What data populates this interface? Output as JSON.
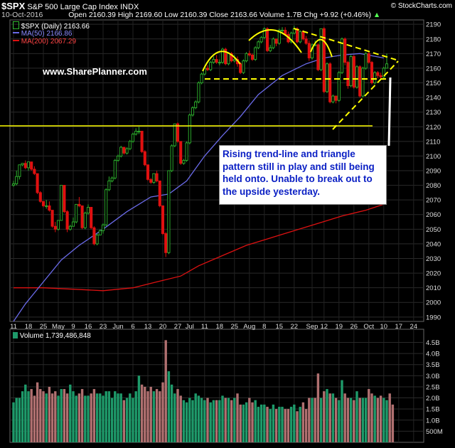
{
  "header": {
    "symbol": "$SPX",
    "name": "S&P 500 Large Cap Index",
    "exchange": "INDX",
    "date": "10-Oct-2016",
    "open_label": "Open",
    "open": "2160.39",
    "high_label": "High",
    "high": "2169.60",
    "low_label": "Low",
    "low": "2160.39",
    "close_label": "Close",
    "close": "2163.66",
    "volume_label": "Volume",
    "volume": "1.7B",
    "chg_label": "Chg",
    "chg": "+9.92 (+0.46%)",
    "chg_arrow": "▲",
    "brand": "© StockCharts.com"
  },
  "watermark": "www.SharePlanner.com",
  "annotation": "Rising trend-line and triangle pattern still in play and still being held onto. Unable to break out to the upside yesterday.",
  "legend": {
    "price": "$SPX (Daily) 2163.66",
    "ma50": "MA(50) 2166.86",
    "ma200": "MA(200) 2067.29",
    "volume": "Volume 1,739,486,848"
  },
  "colors": {
    "background": "#000000",
    "up_candle": "#2fb52f",
    "down_candle": "#e01010",
    "ma50": "#6a6ae8",
    "ma200": "#dd1111",
    "pattern_lines": "#ffff00",
    "vol_up": "#1e9a6a",
    "vol_down": "#b07070"
  },
  "chart_data": [
    {
      "type": "candlestick",
      "title": "$SPX S&P 500 Large Cap Index INDX",
      "ylim": [
        1987,
        2193
      ],
      "y_ticks": [
        1990,
        2000,
        2010,
        2020,
        2030,
        2040,
        2050,
        2060,
        2070,
        2080,
        2090,
        2100,
        2110,
        2120,
        2130,
        2140,
        2150,
        2160,
        2170,
        2180,
        2190
      ],
      "x_tick_labels": [
        "11",
        "18",
        "25",
        "May",
        "9",
        "16",
        "23",
        "Jun",
        "6",
        "13",
        "20",
        "27",
        "Jul",
        "11",
        "18",
        "25",
        "Aug",
        "8",
        "15",
        "22",
        "Sep",
        "12",
        "19",
        "26",
        "Oct",
        "10",
        "17",
        "24"
      ],
      "x_tick_index": [
        0,
        5,
        10,
        15,
        20,
        25,
        30,
        35,
        40,
        45,
        50,
        55,
        59,
        64,
        69,
        74,
        79,
        84,
        89,
        94,
        100,
        104,
        109,
        114,
        119,
        124,
        129,
        134
      ],
      "series": [
        {
          "name": "$SPX (Daily)",
          "close": [
            2081,
            2086,
            2094,
            2095,
            2092,
            2096,
            2091,
            2088,
            2075,
            2069,
            2066,
            2066,
            2063,
            2052,
            2050,
            2056,
            2080,
            2062,
            2050,
            2052,
            2055,
            2067,
            2066,
            2051,
            2061,
            2065,
            2051,
            2040,
            2046,
            2049,
            2053,
            2077,
            2083,
            2085,
            2097,
            2100,
            2106,
            2102,
            2105,
            2110,
            2115,
            2117,
            2117,
            2103,
            2094,
            2084,
            2082,
            2088,
            2083,
            2066,
            2047,
            2034,
            2090,
            2107,
            2122,
            2110,
            2095,
            2097,
            2109,
            2128,
            2133,
            2137,
            2150,
            2156,
            2160,
            2159,
            2164,
            2166,
            2164,
            2164,
            2173,
            2163,
            2170,
            2165,
            2166,
            2163,
            2157,
            2165,
            2170,
            2169,
            2166,
            2174,
            2178,
            2181,
            2187,
            2172,
            2174,
            2180,
            2177,
            2186,
            2186,
            2183,
            2178,
            2184,
            2187,
            2178,
            2185,
            2180,
            2177,
            2167,
            2176,
            2176,
            2159,
            2187,
            2144,
            2163,
            2137,
            2141,
            2138,
            2157,
            2180,
            2164,
            2148,
            2168,
            2147,
            2161,
            2141,
            2160,
            2170,
            2164,
            2150,
            2157,
            2155,
            2154,
            2160,
            2163
          ],
          "high": [
            2083,
            2090,
            2094,
            2095,
            2097,
            2096,
            2095,
            2093,
            2082,
            2076,
            2068,
            2070,
            2069,
            2060,
            2055,
            2056,
            2080,
            2080,
            2063,
            2053,
            2058,
            2067,
            2072,
            2064,
            2062,
            2067,
            2064,
            2052,
            2047,
            2050,
            2054,
            2078,
            2086,
            2086,
            2098,
            2101,
            2107,
            2106,
            2106,
            2111,
            2116,
            2119,
            2120,
            2117,
            2104,
            2094,
            2085,
            2088,
            2090,
            2083,
            2066,
            2048,
            2090,
            2108,
            2122,
            2123,
            2110,
            2098,
            2110,
            2129,
            2134,
            2138,
            2151,
            2157,
            2161,
            2162,
            2165,
            2168,
            2169,
            2166,
            2174,
            2174,
            2171,
            2171,
            2169,
            2168,
            2164,
            2166,
            2171,
            2172,
            2170,
            2175,
            2179,
            2182,
            2188,
            2188,
            2176,
            2181,
            2180,
            2187,
            2188,
            2188,
            2185,
            2185,
            2189,
            2188,
            2186,
            2186,
            2182,
            2179,
            2177,
            2179,
            2177,
            2187,
            2188,
            2164,
            2164,
            2142,
            2141,
            2158,
            2181,
            2181,
            2165,
            2169,
            2169,
            2162,
            2162,
            2161,
            2171,
            2171,
            2165,
            2158,
            2158,
            2157,
            2161,
            2170
          ],
          "low": [
            2079,
            2080,
            2084,
            2093,
            2091,
            2090,
            2090,
            2087,
            2074,
            2068,
            2065,
            2064,
            2062,
            2051,
            2048,
            2049,
            2056,
            2061,
            2048,
            2049,
            2052,
            2054,
            2065,
            2050,
            2050,
            2060,
            2050,
            2039,
            2039,
            2046,
            2047,
            2052,
            2076,
            2082,
            2084,
            2096,
            2099,
            2101,
            2101,
            2104,
            2109,
            2114,
            2115,
            2102,
            2093,
            2083,
            2081,
            2081,
            2082,
            2065,
            2046,
            2031,
            2033,
            2089,
            2106,
            2109,
            2094,
            2094,
            2096,
            2108,
            2127,
            2132,
            2136,
            2149,
            2155,
            2158,
            2158,
            2163,
            2163,
            2162,
            2163,
            2162,
            2162,
            2164,
            2164,
            2161,
            2156,
            2156,
            2164,
            2168,
            2165,
            2165,
            2173,
            2177,
            2180,
            2171,
            2171,
            2173,
            2175,
            2176,
            2184,
            2182,
            2177,
            2177,
            2183,
            2177,
            2177,
            2179,
            2176,
            2165,
            2166,
            2175,
            2158,
            2158,
            2143,
            2143,
            2136,
            2136,
            2136,
            2137,
            2156,
            2162,
            2146,
            2147,
            2146,
            2146,
            2140,
            2140,
            2159,
            2163,
            2149,
            2149,
            2153,
            2153,
            2153,
            2160
          ]
        },
        {
          "name": "MA(50)",
          "points": [
            [
              0,
              1987
            ],
            [
              4,
              1999
            ],
            [
              10,
              2014
            ],
            [
              16,
              2029
            ],
            [
              22,
              2039
            ],
            [
              30,
              2050
            ],
            [
              38,
              2062
            ],
            [
              46,
              2072
            ],
            [
              52,
              2074
            ],
            [
              58,
              2083
            ],
            [
              64,
              2100
            ],
            [
              70,
              2114
            ],
            [
              76,
              2127
            ],
            [
              82,
              2142
            ],
            [
              90,
              2155
            ],
            [
              98,
              2163
            ],
            [
              104,
              2167
            ],
            [
              110,
              2169
            ],
            [
              116,
              2170
            ],
            [
              124,
              2167
            ]
          ]
        },
        {
          "name": "MA(200)",
          "points": [
            [
              0,
              2010
            ],
            [
              10,
              2010
            ],
            [
              20,
              2009
            ],
            [
              30,
              2008
            ],
            [
              40,
              2010
            ],
            [
              48,
              2014
            ],
            [
              56,
              2018
            ],
            [
              62,
              2025
            ],
            [
              70,
              2032
            ],
            [
              78,
              2039
            ],
            [
              86,
              2044
            ],
            [
              94,
              2049
            ],
            [
              102,
              2054
            ],
            [
              110,
              2059
            ],
            [
              118,
              2063
            ],
            [
              124,
              2067
            ]
          ]
        }
      ]
    },
    {
      "type": "bar",
      "title": "Volume 1,739,486,848",
      "ylim": [
        0,
        4.9
      ],
      "y_ticks": [
        "500M",
        "1.0B",
        "1.5B",
        "2.0B",
        "2.5B",
        "3.0B",
        "3.5B",
        "4.0B",
        "4.5B"
      ],
      "y_tick_values": [
        0.5,
        1.0,
        1.5,
        2.0,
        2.5,
        3.0,
        3.5,
        4.0,
        4.5
      ],
      "series": [
        {
          "name": "Volume",
          "values": [
            1.8,
            2.0,
            2.0,
            2.3,
            2.6,
            2.3,
            2.4,
            2.1,
            2.7,
            2.4,
            2.3,
            2.2,
            2.5,
            2.2,
            2.3,
            2.1,
            2.4,
            2.4,
            2.2,
            2.6,
            2.3,
            2.1,
            2.2,
            2.4,
            2.1,
            2.1,
            2.2,
            2.4,
            2.2,
            2.2,
            2.1,
            2.3,
            2.3,
            2.0,
            2.3,
            2.2,
            2.2,
            1.9,
            2.0,
            2.2,
            2.0,
            2.3,
            3.0,
            2.6,
            2.5,
            2.3,
            2.5,
            2.3,
            2.4,
            2.3,
            2.7,
            4.6,
            3.2,
            2.6,
            2.2,
            2.4,
            2.1,
            1.9,
            1.8,
            2.0,
            1.9,
            2.2,
            2.1,
            2.0,
            1.9,
            2.0,
            1.8,
            1.9,
            1.9,
            1.9,
            2.1,
            2.0,
            2.0,
            1.9,
            2.0,
            2.2,
            1.7,
            1.7,
            1.8,
            2.0,
            1.8,
            1.9,
            1.6,
            1.7,
            1.7,
            1.6,
            1.5,
            1.7,
            1.5,
            1.6,
            1.6,
            1.5,
            1.5,
            1.6,
            1.7,
            1.4,
            1.6,
            1.8,
            1.5,
            2.0,
            2.0,
            2.0,
            3.1,
            2.0,
            2.3,
            2.4,
            2.2,
            2.2,
            2.0,
            1.9,
            2.8,
            2.2,
            2.0,
            2.0,
            1.9,
            2.3,
            2.0,
            2.0,
            2.0,
            2.4,
            2.2,
            2.1,
            2.0,
            2.1,
            2.0,
            1.9,
            2.2,
            1.7
          ]
        },
        {
          "name": "direction",
          "up": [
            1,
            1,
            1,
            1,
            1,
            1,
            0,
            0,
            0,
            0,
            0,
            1,
            0,
            0,
            0,
            1,
            1,
            0,
            0,
            1,
            1,
            1,
            0,
            0,
            1,
            1,
            0,
            0,
            1,
            1,
            1,
            1,
            1,
            1,
            1,
            1,
            1,
            0,
            1,
            1,
            1,
            1,
            1,
            0,
            0,
            0,
            0,
            1,
            0,
            0,
            0,
            0,
            1,
            1,
            1,
            0,
            0,
            1,
            1,
            1,
            1,
            1,
            1,
            1,
            1,
            0,
            1,
            1,
            0,
            1,
            1,
            0,
            1,
            0,
            1,
            0,
            0,
            1,
            1,
            0,
            0,
            1,
            1,
            1,
            1,
            0,
            1,
            1,
            0,
            1,
            1,
            0,
            0,
            1,
            1,
            0,
            1,
            0,
            0,
            0,
            1,
            0,
            0,
            1,
            0,
            1,
            0,
            1,
            0,
            1,
            1,
            0,
            0,
            1,
            0,
            1,
            0,
            1,
            1,
            0,
            0,
            1,
            0,
            0,
            1,
            1
          ]
        }
      ]
    }
  ]
}
